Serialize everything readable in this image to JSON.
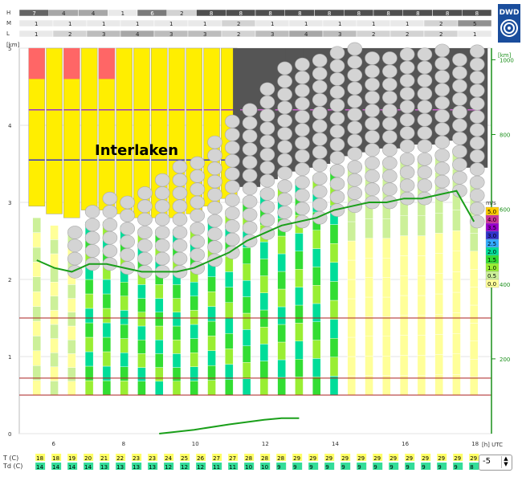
{
  "logo_text": "DWD",
  "location_label": "Interlaken",
  "unit_label": "[h] UTC",
  "y_left_unit": "[km]",
  "y_right_unit": "[km]",
  "y_left_ticks": [
    "0",
    "1",
    "2",
    "3",
    "4",
    "5"
  ],
  "y_right_ticks": [
    "200",
    "400",
    "600",
    "800",
    "1000"
  ],
  "x_ticks": [
    "6",
    "8",
    "10",
    "12",
    "14",
    "16",
    "18"
  ],
  "cloud_rows": [
    {
      "label": "H",
      "values": [
        "7",
        "",
        "4",
        "4",
        "",
        "",
        "1",
        "",
        "",
        "6",
        "",
        "2",
        "",
        "8",
        "",
        "8",
        "",
        "8",
        "",
        "8",
        "",
        "8",
        "",
        "8",
        "",
        "8",
        "",
        "8",
        "",
        "8",
        "",
        "8"
      ]
    },
    {
      "label": "M",
      "values": [
        "1",
        "",
        "1",
        "",
        "1",
        "",
        "1",
        "",
        "1",
        "",
        "1",
        "",
        "2",
        "",
        "1",
        "",
        "1",
        "",
        "1",
        "",
        "1",
        "",
        "1",
        "",
        "2",
        "",
        "5"
      ]
    },
    {
      "label": "L",
      "values": [
        "1",
        "",
        "2",
        "",
        "3",
        "",
        "4",
        "",
        "3",
        "",
        "3",
        "",
        "2",
        "",
        "3",
        "",
        "4",
        "",
        "3",
        "",
        "2",
        "",
        "2",
        "",
        "2",
        "",
        "1"
      ]
    }
  ],
  "wind_legend": {
    "unit": "m/s",
    "levels": [
      "5.0",
      "4.0",
      "3.5",
      "3.0",
      "2.5",
      "2.0",
      "1.5",
      "1.0",
      "0.5",
      "0.0"
    ],
    "colors": [
      "#ffcc00",
      "#cc3399",
      "#9900cc",
      "#3333cc",
      "#33aaff",
      "#00dd99",
      "#33dd33",
      "#99ee33",
      "#ccf099",
      "#ffff99"
    ]
  },
  "offset_value": "-5",
  "temperature": {
    "t_label": "T (C)",
    "td_label": "Td (C)",
    "t": [
      "18",
      "18",
      "19",
      "20",
      "21",
      "22",
      "23",
      "23",
      "24",
      "25",
      "26",
      "27",
      "27",
      "28",
      "28",
      "28",
      "29",
      "29",
      "29",
      "29",
      "29",
      "29",
      "29",
      "29",
      "29",
      "29",
      "29",
      "29"
    ],
    "td": [
      "14",
      "14",
      "14",
      "14",
      "13",
      "13",
      "13",
      "13",
      "12",
      "12",
      "12",
      "11",
      "11",
      "10",
      "10",
      "9",
      "9",
      "9",
      "9",
      "9",
      "9",
      "9",
      "9",
      "9",
      "9",
      "9",
      "9",
      "8"
    ]
  },
  "chart_data": {
    "type": "heatmap",
    "title": "",
    "xlabel": "[h] UTC",
    "ylabel": "[km]",
    "x_range": [
      5,
      18.5
    ],
    "y_range": [
      0,
      5
    ],
    "hours": [
      5.5,
      6,
      6.5,
      7,
      7.5,
      8,
      8.5,
      9,
      9.5,
      10,
      10.5,
      11,
      11.5,
      12,
      12.5,
      13,
      13.5,
      14,
      14.5,
      15,
      15.5,
      16,
      16.5,
      17,
      17.5,
      18
    ],
    "boundary_layer_km": [
      2.25,
      2.15,
      2.1,
      2.2,
      2.2,
      2.15,
      2.1,
      2.1,
      2.1,
      2.15,
      2.25,
      2.35,
      2.5,
      2.6,
      2.7,
      2.75,
      2.8,
      2.9,
      2.95,
      3.0,
      3.0,
      3.05,
      3.05,
      3.1,
      3.15,
      2.75
    ],
    "precip_hours": [
      9.0,
      10.0,
      11.0,
      12.0,
      12.5,
      13.0
    ],
    "precip_values": [
      0.0,
      0.05,
      0.12,
      0.18,
      0.2,
      0.2
    ],
    "cloud_base_km": 5.0,
    "reference_heights_km": [
      0.5,
      0.72,
      1.5
    ],
    "labels": [
      "H",
      "M",
      "L"
    ]
  }
}
